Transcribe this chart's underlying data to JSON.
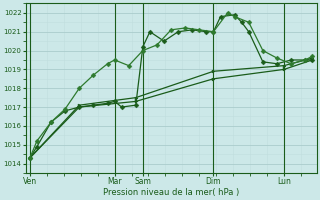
{
  "xlabel": "Pression niveau de la mer( hPa )",
  "background_color": "#cce8e8",
  "grid_color_major": "#aacccc",
  "grid_color_minor": "#c0dede",
  "line_color_dark": "#1a5c1a",
  "ylim": [
    1013.5,
    1022.5
  ],
  "yticks": [
    1014,
    1015,
    1016,
    1017,
    1018,
    1019,
    1020,
    1021,
    1022
  ],
  "day_labels": [
    "Ven",
    "Mar",
    "Sam",
    "Dim",
    "Lun"
  ],
  "day_x": [
    0,
    6,
    8,
    13,
    18
  ],
  "xlim": [
    -0.3,
    20.3
  ],
  "series1_x": [
    0,
    0.5,
    1.5,
    2.5,
    3.5,
    4.5,
    5.5,
    6.0,
    6.5,
    7.5,
    8.0,
    8.5,
    9.5,
    10.5,
    11.5,
    12.5,
    13.0,
    13.5,
    14.5,
    15.0,
    15.5,
    16.5,
    17.5,
    18.5,
    19.5,
    20.0
  ],
  "series1_y": [
    1014.3,
    1014.9,
    1016.2,
    1016.8,
    1017.0,
    1017.1,
    1017.2,
    1017.3,
    1017.0,
    1017.1,
    1020.2,
    1021.0,
    1020.5,
    1021.0,
    1021.1,
    1021.0,
    1021.0,
    1021.8,
    1021.9,
    1021.5,
    1021.0,
    1019.4,
    1019.3,
    1019.5,
    1019.5,
    1019.5
  ],
  "series2_x": [
    0,
    0.5,
    1.5,
    2.5,
    3.5,
    4.5,
    5.5,
    6.0,
    7.0,
    8.0,
    9.0,
    10.0,
    11.0,
    12.0,
    13.0,
    14.0,
    14.5,
    15.5,
    16.5,
    17.5,
    18.5,
    19.5,
    20.0
  ],
  "series2_y": [
    1014.3,
    1015.2,
    1016.2,
    1016.9,
    1018.0,
    1018.7,
    1019.3,
    1019.5,
    1019.2,
    1020.0,
    1020.3,
    1021.1,
    1021.2,
    1021.1,
    1021.0,
    1022.0,
    1021.8,
    1021.5,
    1020.0,
    1019.6,
    1019.3,
    1019.5,
    1019.7
  ],
  "series3_x": [
    0,
    3.5,
    7.5,
    13.0,
    18.0,
    20.0
  ],
  "series3_y": [
    1014.3,
    1017.0,
    1017.3,
    1018.5,
    1019.0,
    1019.5
  ],
  "series4_x": [
    0,
    3.5,
    7.5,
    13.0,
    18.0,
    20.0
  ],
  "series4_y": [
    1014.3,
    1017.1,
    1017.5,
    1018.9,
    1019.2,
    1019.6
  ]
}
